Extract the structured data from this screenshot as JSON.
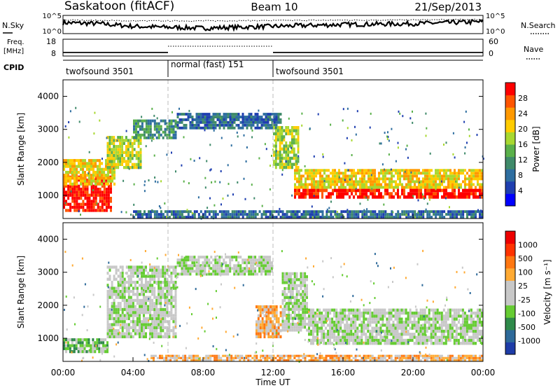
{
  "header": {
    "station": "Saskatoon (fitACF)",
    "beam": "Beam 10",
    "date": "21/Sep/2013"
  },
  "noise_panel": {
    "left_label": "N.Sky",
    "right_label": "N.Search",
    "ticks_left": [
      "10^5",
      "10^0"
    ],
    "ticks_right": [
      "10^5",
      "10^0"
    ]
  },
  "freq_panel": {
    "left_label_1": "Freq.",
    "left_label_2": "[MHz]",
    "right_label": "Nave",
    "ticks_left": [
      "18",
      "8"
    ],
    "ticks_right": [
      "60",
      "0"
    ]
  },
  "cpid": {
    "label": "CPID",
    "segments": [
      {
        "label": "twofsound 3501",
        "start_h": 0,
        "end_h": 6
      },
      {
        "label": "normal (fast) 151",
        "start_h": 6,
        "end_h": 12
      },
      {
        "label": "twofsound 3501",
        "start_h": 12,
        "end_h": 24
      }
    ]
  },
  "xaxis": {
    "label": "Time UT",
    "ticks": [
      "00:00",
      "04:00",
      "08:00",
      "12:00",
      "16:00",
      "20:00",
      "00:00"
    ]
  },
  "power_panel": {
    "ylabel": "Slant Range [km]",
    "yticks": [
      "1000",
      "2000",
      "3000",
      "4000"
    ],
    "colorbar_label": "Power [dB]",
    "colorbar_ticks": [
      "4",
      "8",
      "12",
      "16",
      "20",
      "24",
      "28"
    ],
    "colors": [
      "#0000ff",
      "#1f3fb0",
      "#2e6ea0",
      "#3f8a6a",
      "#5ab04a",
      "#a8d830",
      "#ffcc00",
      "#ff9900",
      "#ff5500",
      "#ff0000"
    ]
  },
  "velocity_panel": {
    "ylabel": "Slant Range [km]",
    "yticks": [
      "1000",
      "2000",
      "3000",
      "4000"
    ],
    "colorbar_label": "Velocity [m s⁻¹]",
    "colorbar_ticks": [
      "1000",
      "500",
      "100",
      "25",
      "-25",
      "-100",
      "-500",
      "-1000"
    ],
    "colors": [
      "#1e3ca8",
      "#2e6a9a",
      "#2f8a4a",
      "#66cc33",
      "#c8c8c8",
      "#c8c8c8",
      "#ffaa33",
      "#ff7711",
      "#ff3300",
      "#ee0000"
    ]
  },
  "chart_data": {
    "type": "heatmap",
    "x_unit": "hours UT",
    "xlim": [
      0,
      24
    ],
    "ylim": [
      300,
      4500
    ],
    "noise_sky_trace": [
      [
        0,
        0.6
      ],
      [
        2,
        0.55
      ],
      [
        4,
        0.4
      ],
      [
        6,
        0.35
      ],
      [
        8,
        0.3
      ],
      [
        10,
        0.35
      ],
      [
        12,
        0.4
      ],
      [
        16,
        0.5
      ],
      [
        20,
        0.55
      ],
      [
        24,
        0.65
      ]
    ],
    "noise_search_trace": [
      [
        0,
        0.75
      ],
      [
        4,
        0.7
      ],
      [
        8,
        0.7
      ],
      [
        12,
        0.72
      ],
      [
        16,
        0.74
      ],
      [
        20,
        0.75
      ],
      [
        24,
        0.78
      ]
    ],
    "freq_mhz_band": [
      [
        0,
        6,
        10.5,
        11.5
      ],
      [
        12,
        24,
        10.5,
        11.5
      ]
    ],
    "power_regions": [
      {
        "x0": 0.0,
        "x1": 2.8,
        "y0": 500,
        "y1": 1600,
        "level": 9
      },
      {
        "x0": 0.0,
        "x1": 3.0,
        "y0": 1300,
        "y1": 2100,
        "level": 6
      },
      {
        "x0": 2.5,
        "x1": 4.5,
        "y0": 1800,
        "y1": 2800,
        "level": 5
      },
      {
        "x0": 4.0,
        "x1": 6.5,
        "y0": 2700,
        "y1": 3300,
        "level": 3
      },
      {
        "x0": 6.5,
        "x1": 12.5,
        "y0": 3000,
        "y1": 3500,
        "level": 2
      },
      {
        "x0": 12.0,
        "x1": 13.5,
        "y0": 1800,
        "y1": 3100,
        "level": 5
      },
      {
        "x0": 13.2,
        "x1": 24.0,
        "y0": 900,
        "y1": 1200,
        "level": 9
      },
      {
        "x0": 13.2,
        "x1": 24.0,
        "y0": 1200,
        "y1": 1800,
        "level": 6
      },
      {
        "x0": 4.0,
        "x1": 24.0,
        "y0": 300,
        "y1": 550,
        "level": 2
      }
    ],
    "velocity_regions": [
      {
        "x0": 0.0,
        "x1": 2.6,
        "y0": 550,
        "y1": 1000,
        "level": 3
      },
      {
        "x0": 2.5,
        "x1": 6.5,
        "y0": 1000,
        "y1": 3200,
        "level": 4
      },
      {
        "x0": 6.5,
        "x1": 12.0,
        "y0": 2900,
        "y1": 3500,
        "level": 4
      },
      {
        "x0": 11.0,
        "x1": 12.5,
        "y0": 1000,
        "y1": 2000,
        "level": 6
      },
      {
        "x0": 12.5,
        "x1": 14.0,
        "y0": 1200,
        "y1": 3000,
        "level": 4
      },
      {
        "x0": 14.0,
        "x1": 24.0,
        "y0": 800,
        "y1": 1900,
        "level": 4
      },
      {
        "x0": 5.0,
        "x1": 24.0,
        "y0": 300,
        "y1": 500,
        "level": 6
      }
    ]
  }
}
